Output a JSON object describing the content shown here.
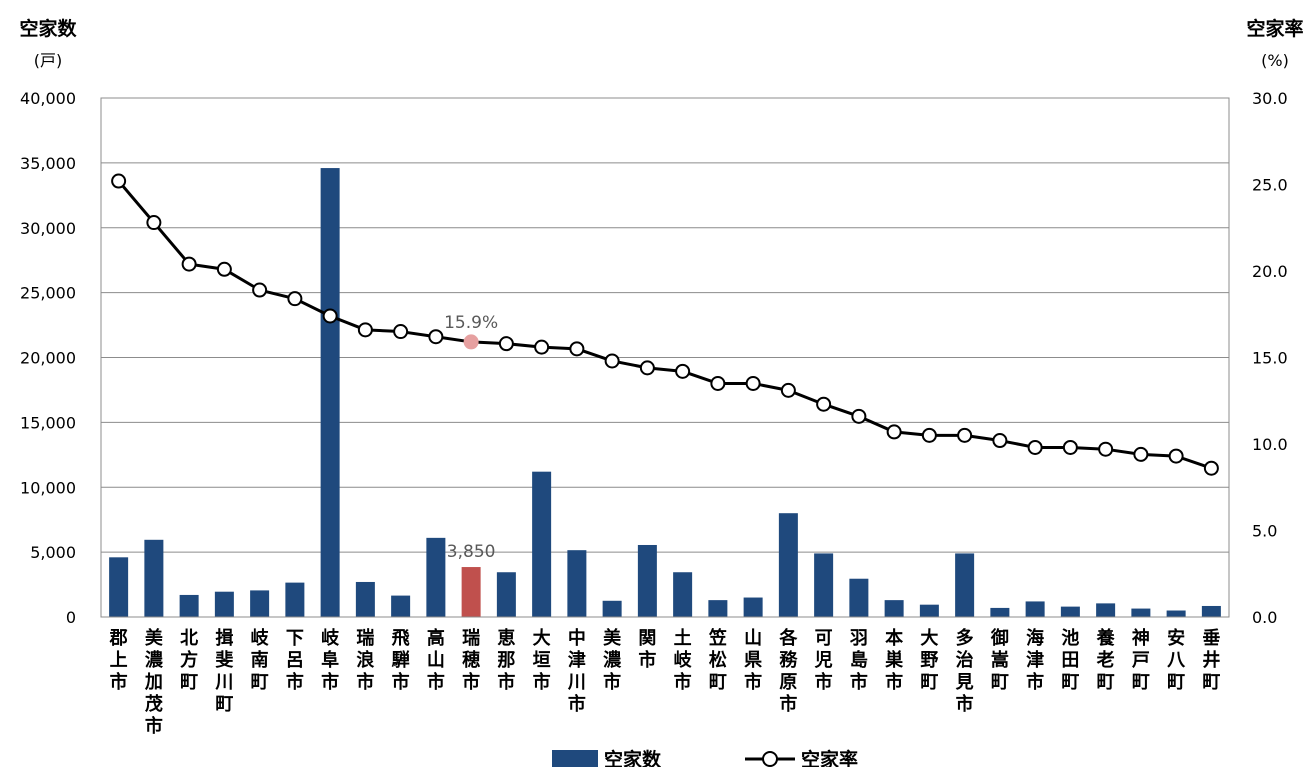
{
  "chart_data": {
    "type": "bar",
    "categories": [
      "郡上市",
      "美濃加茂市",
      "北方町",
      "揖斐川町",
      "岐南町",
      "下呂市",
      "岐阜市",
      "瑞浪市",
      "飛騨市",
      "高山市",
      "瑞穂市",
      "恵那市",
      "大垣市",
      "中津川市",
      "美濃市",
      "関市",
      "土岐市",
      "笠松町",
      "山県市",
      "各務原市",
      "可児市",
      "羽島市",
      "本巣市",
      "大野町",
      "多治見市",
      "御嵩町",
      "海津市",
      "池田町",
      "養老町",
      "神戸町",
      "安八町",
      "垂井町"
    ],
    "series": [
      {
        "name": "空家数",
        "type": "bar",
        "axis": "left",
        "color": "#1F497D",
        "values": [
          4600,
          5950,
          1700,
          1950,
          2050,
          2650,
          34600,
          2700,
          1650,
          6100,
          3850,
          3450,
          11200,
          5150,
          1250,
          5550,
          3450,
          1300,
          1500,
          8000,
          4900,
          2950,
          1300,
          950,
          4900,
          700,
          1200,
          800,
          1050,
          650,
          500,
          850
        ]
      },
      {
        "name": "空家率",
        "type": "line",
        "axis": "right",
        "color": "#000000",
        "values": [
          25.2,
          22.8,
          20.4,
          20.1,
          18.9,
          18.4,
          17.4,
          16.6,
          16.5,
          16.2,
          15.9,
          15.8,
          15.6,
          15.5,
          14.8,
          14.4,
          14.2,
          13.5,
          13.5,
          13.1,
          12.3,
          11.6,
          10.7,
          10.5,
          10.5,
          10.2,
          9.8,
          9.8,
          9.7,
          9.4,
          9.3,
          8.6
        ]
      }
    ],
    "highlight": {
      "category": "瑞穂市",
      "bar_color": "#C0504D",
      "point_color": "#E6A0A0",
      "bar_label": "3,850",
      "point_label": "15.9%"
    },
    "y_left": {
      "label": "空家数",
      "unit": "(戸)",
      "ylim": [
        0,
        40000
      ],
      "ticks": [
        "0",
        "5,000",
        "10,000",
        "15,000",
        "20,000",
        "25,000",
        "30,000",
        "35,000",
        "40,000"
      ]
    },
    "y_right": {
      "label": "空家率",
      "unit": "(%)",
      "ylim": [
        0,
        30
      ],
      "ticks": [
        "0.0",
        "5.0",
        "10.0",
        "15.0",
        "20.0",
        "25.0",
        "30.0"
      ]
    },
    "grid": true,
    "legend": {
      "position": "bottom",
      "items": [
        "空家数",
        "空家率"
      ]
    }
  }
}
